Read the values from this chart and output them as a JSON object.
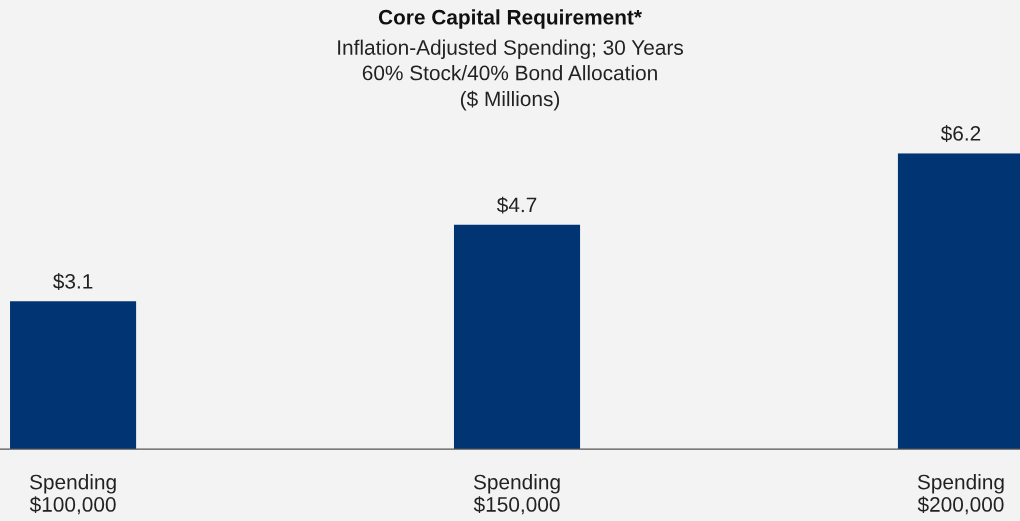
{
  "chart_data": {
    "type": "bar",
    "title": "Core Capital Requirement*",
    "subtitle": "Inflation-Adjusted Spending; 30 Years\n60% Stock/40% Bond Allocation\n($ Millions)",
    "categories": [
      "Spending\n$100,000",
      "Spending\n$150,000",
      "Spending\n$200,000"
    ],
    "values": [
      3.1,
      4.7,
      6.2
    ],
    "value_labels": [
      "$3.1",
      "$4.7",
      "$6.2"
    ],
    "color": "#003473",
    "grid": false,
    "legend": false
  }
}
